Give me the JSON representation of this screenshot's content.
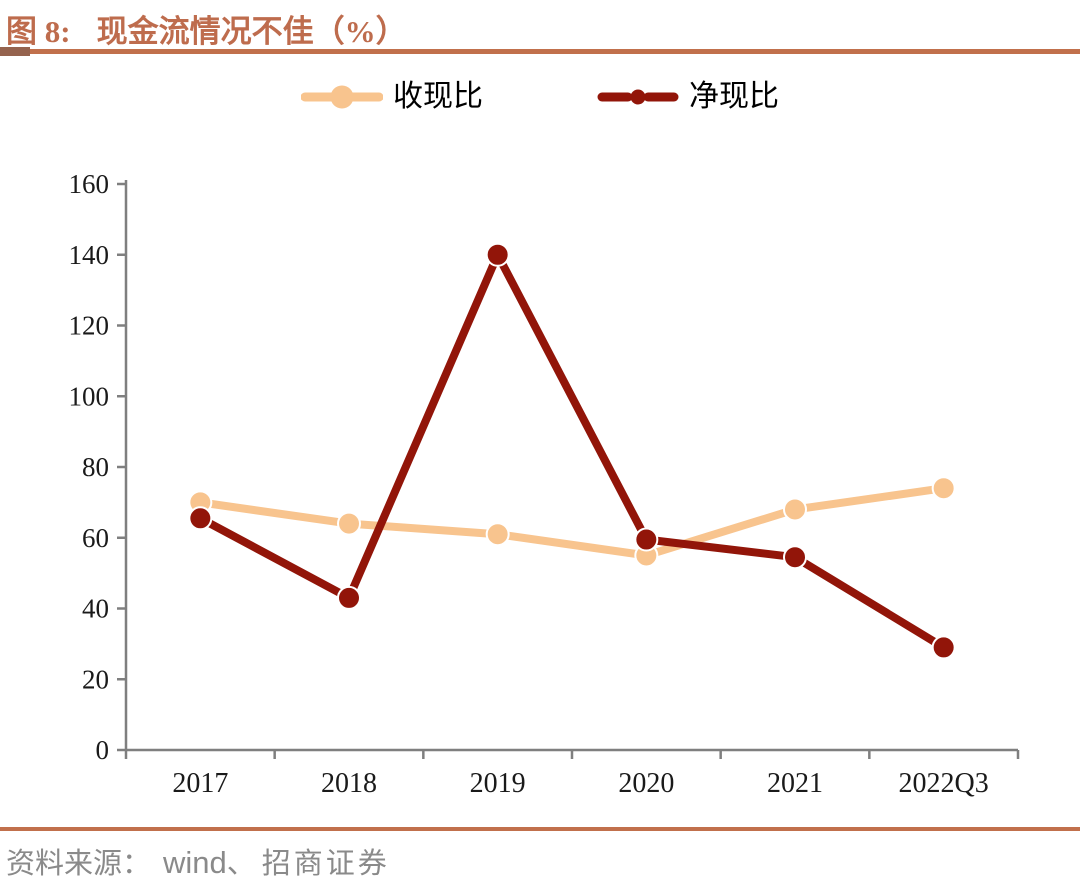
{
  "figure": {
    "title_prefix": "图 8:",
    "title_text": "现金流情况不佳（%）"
  },
  "footer": {
    "prefix": "资料来源：",
    "wind": "wind",
    "separator": "、",
    "org": "招商证券"
  },
  "colors": {
    "title": "#BE6C4D",
    "divider": "#C1704C",
    "divider_block": "#95634E",
    "axis": "#7F7F7F",
    "tick_text": "#1A1A1A",
    "footer_text": "#8A8A8A",
    "series_peach": "#F8C48E",
    "series_dark_red": "#921509"
  },
  "chart_data": {
    "type": "line",
    "title": "现金流情况不佳（%）",
    "xlabel": "",
    "ylabel": "",
    "categories": [
      "2017",
      "2018",
      "2019",
      "2020",
      "2021",
      "2022Q3"
    ],
    "series": [
      {
        "name": "收现比",
        "color": "#F8C48E",
        "legend_style": "solid-line-dot",
        "values": [
          70,
          64,
          61,
          55,
          68,
          74
        ]
      },
      {
        "name": "净现比",
        "color": "#921509",
        "legend_style": "dash-dot-dash",
        "values": [
          65.5,
          43,
          140,
          59.5,
          54.5,
          29
        ]
      }
    ],
    "ylim": [
      0,
      160
    ],
    "ytick_step": 20,
    "grid": false,
    "legend_position": "top"
  }
}
